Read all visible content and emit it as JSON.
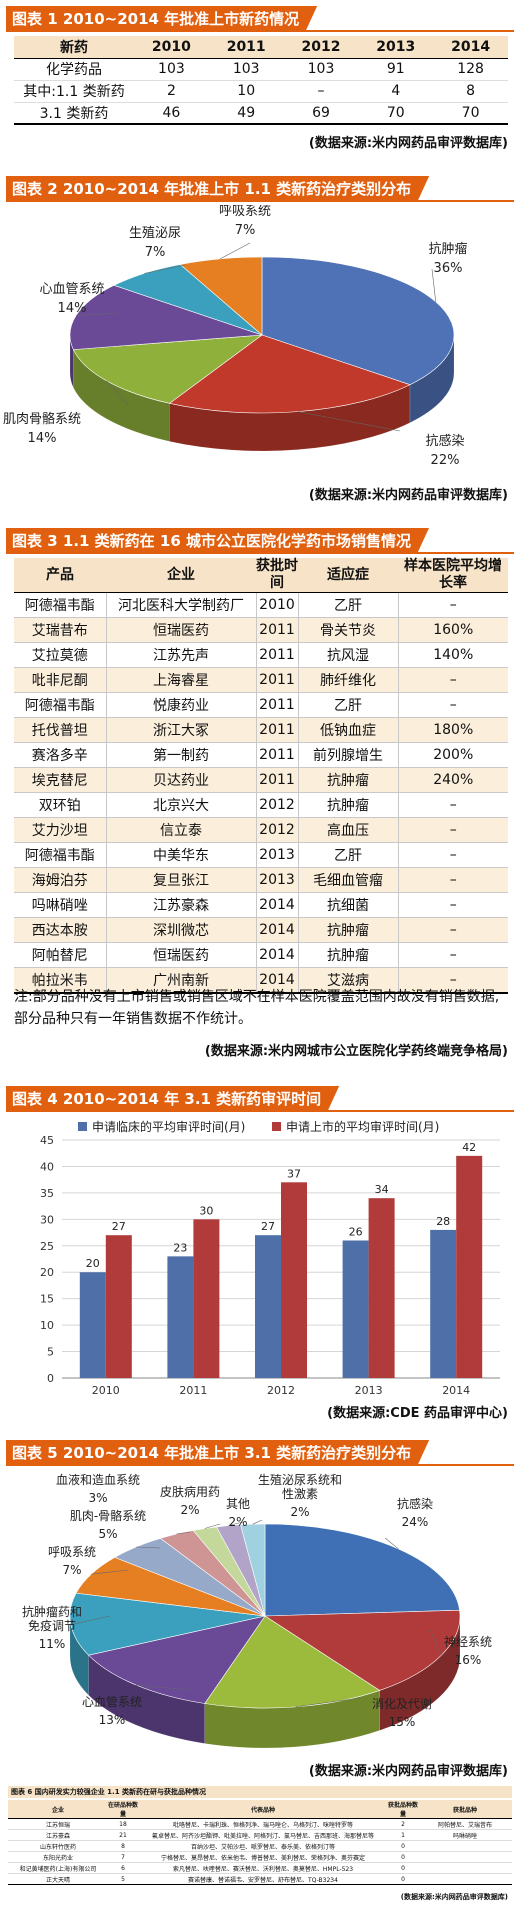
{
  "fig1": {
    "title": "图表 1 2010~2014 年批准上市新药情况",
    "headers": [
      "新药",
      "2010",
      "2011",
      "2012",
      "2013",
      "2014"
    ],
    "rows": [
      [
        "化学药品",
        "103",
        "103",
        "103",
        "91",
        "128"
      ],
      [
        "其中:1.1 类新药",
        "2",
        "10",
        "–",
        "4",
        "8"
      ],
      [
        "3.1 类新药",
        "46",
        "49",
        "69",
        "70",
        "70"
      ]
    ],
    "source": "(数据来源:米内网药品审评数据库)"
  },
  "fig2": {
    "title": "图表 2 2010~2014 年批准上市 1.1 类新药治疗类别分布",
    "source": "(数据来源:米内网药品审评数据库)"
  },
  "fig3": {
    "title": "图表 3 1.1 类新药在 16 城市公立医院化学药市场销售情况",
    "headers": [
      "产品",
      "企业",
      "获批时间",
      "适应症",
      "样本医院平均增长率"
    ],
    "rows": [
      [
        "阿德福韦酯",
        "河北医科大学制药厂",
        "2010",
        "乙肝",
        "–"
      ],
      [
        "艾瑞昔布",
        "恒瑞医药",
        "2011",
        "骨关节炎",
        "160%"
      ],
      [
        "艾拉莫德",
        "江苏先声",
        "2011",
        "抗风湿",
        "140%"
      ],
      [
        "吡非尼酮",
        "上海睿星",
        "2011",
        "肺纤维化",
        "–"
      ],
      [
        "阿德福韦酯",
        "悦康药业",
        "2011",
        "乙肝",
        "–"
      ],
      [
        "托伐普坦",
        "浙江大冢",
        "2011",
        "低钠血症",
        "180%"
      ],
      [
        "赛洛多辛",
        "第一制药",
        "2011",
        "前列腺增生",
        "200%"
      ],
      [
        "埃克替尼",
        "贝达药业",
        "2011",
        "抗肿瘤",
        "240%"
      ],
      [
        "双环铂",
        "北京兴大",
        "2012",
        "抗肿瘤",
        "–"
      ],
      [
        "艾力沙坦",
        "信立泰",
        "2012",
        "高血压",
        "–"
      ],
      [
        "阿德福韦酯",
        "中美华东",
        "2013",
        "乙肝",
        "–"
      ],
      [
        "海姆泊芬",
        "复旦张江",
        "2013",
        "毛细血管瘤",
        "–"
      ],
      [
        "吗啉硝唑",
        "江苏豪森",
        "2014",
        "抗细菌",
        "–"
      ],
      [
        "西达本胺",
        "深圳微芯",
        "2014",
        "抗肿瘤",
        "–"
      ],
      [
        "阿帕替尼",
        "恒瑞医药",
        "2014",
        "抗肿瘤",
        "–"
      ],
      [
        "帕拉米韦",
        "广州南新",
        "2014",
        "艾滋病",
        "–"
      ]
    ],
    "note": "注:部分品种没有上市销售或销售区域不在样本医院覆盖范围内故没有销售数据,部分品种只有一年销售数据不作统计。",
    "source": "(数据来源:米内网城市公立医院化学药终端竞争格局)"
  },
  "fig4": {
    "title": "图表 4 2010~2014 年 3.1 类新药审评时间",
    "source": "(数据来源:CDE 药品审评中心)"
  },
  "fig5": {
    "title": "图表 5 2010~2014 年批准上市 3.1 类新药治疗类别分布",
    "source": "(数据来源:米内网药品审评数据库)"
  },
  "fig6": {
    "title": "图表 6 国内研发实力较强企业 1.1 类新药在研与获批品种情况",
    "headers": [
      "企业",
      "在研品种数量",
      "代表品种",
      "获批品种数量",
      "获批品种"
    ],
    "rows": [
      [
        "江苏恒瑞",
        "18",
        "吡咯替尼、卡瑞利珠、恒格列净、瑞马唑仑、乌格列汀、咪唑特罗等",
        "2",
        "阿帕替尼、艾瑞昔布"
      ],
      [
        "江苏豪森",
        "21",
        "氟卓替尼、阿齐沙坦酯钾、吡美拉唑、阿格列汀、氯马替尼、吉西那班、海那替尼等",
        "1",
        "吗啉硝唑"
      ],
      [
        "山东轩竹医药",
        "8",
        "百纳沙坦、艾帕沙坦、哌罗替尼、泰乐美、依格列汀等",
        "0",
        ""
      ],
      [
        "东阳光药业",
        "7",
        "宁格替尼、莫昂替尼、依米他韦、博普替尼、美利替尼、荣格列净、奥芬赛定",
        "0",
        ""
      ],
      [
        "和记黄埔医药(上海)有限公司",
        "6",
        "索凡替尼、呋喹替尼、赛沃替尼、沃利替尼、奥莫替尼、HMPL-523",
        "0",
        ""
      ],
      [
        "正大天晴",
        "5",
        "赛诺替康、替诺福韦、安罗替尼、舒布替尼、TQ-B3234",
        "0",
        ""
      ]
    ],
    "source": "(数据来源:米内网药品审评数据库)"
  },
  "colors": {
    "accent": "#e1600f",
    "series_blue": "#4f6fa8",
    "series_red": "#b13a3a"
  },
  "chart_data": [
    {
      "type": "pie",
      "title": "图表 2 2010~2014 年批准上市 1.1 类新药治疗类别分布",
      "labels": [
        "抗肿瘤",
        "抗感染",
        "肌肉骨骼系统",
        "心血管系统",
        "生殖泌尿",
        "呼吸系统"
      ],
      "values": [
        36,
        22,
        14,
        14,
        7,
        7
      ],
      "value_labels": [
        "36%",
        "22%",
        "14%",
        "14%",
        "7%",
        "7%"
      ],
      "colors": [
        "#4f72b6",
        "#c0392b",
        "#8fb03a",
        "#6a4a97",
        "#3aa0bd",
        "#e67e22"
      ]
    },
    {
      "type": "bar",
      "title": "图表 4 2010~2014 年 3.1 类新药审评时间",
      "categories": [
        "2010",
        "2011",
        "2012",
        "2013",
        "2014"
      ],
      "series": [
        {
          "name": "申请临床的平均审评时间(月)",
          "values": [
            20,
            23,
            27,
            26,
            28
          ]
        },
        {
          "name": "申请上市的平均审评时间(月)",
          "values": [
            27,
            30,
            37,
            34,
            42
          ]
        }
      ],
      "ylim": [
        0,
        45
      ],
      "yticks": [
        0,
        5,
        10,
        15,
        20,
        25,
        30,
        35,
        40,
        45
      ],
      "grid": true,
      "legend": "top"
    },
    {
      "type": "pie",
      "title": "图表 5 2010~2014 年批准上市 3.1 类新药治疗类别分布",
      "labels": [
        "抗感染",
        "神经系统",
        "消化及代谢",
        "心血管系统",
        "抗肿瘤药和免疫调节",
        "呼吸系统",
        "肌肉-骨骼系统",
        "血液和造血系统",
        "皮肤病用药",
        "其他",
        "生殖泌尿系统和性激素"
      ],
      "values": [
        24,
        16,
        15,
        13,
        11,
        7,
        5,
        3,
        2,
        2,
        2
      ],
      "value_labels": [
        "24%",
        "16%",
        "15%",
        "13%",
        "11%",
        "7%",
        "5%",
        "3%",
        "2%",
        "2%",
        "2%"
      ],
      "colors": [
        "#3f6fb5",
        "#b13a3a",
        "#9cbb3d",
        "#6a4a97",
        "#3aa0bd",
        "#e67e22",
        "#96a9c9",
        "#cf9494",
        "#c3d89a",
        "#b1a4c8",
        "#9fd1e0"
      ]
    }
  ]
}
